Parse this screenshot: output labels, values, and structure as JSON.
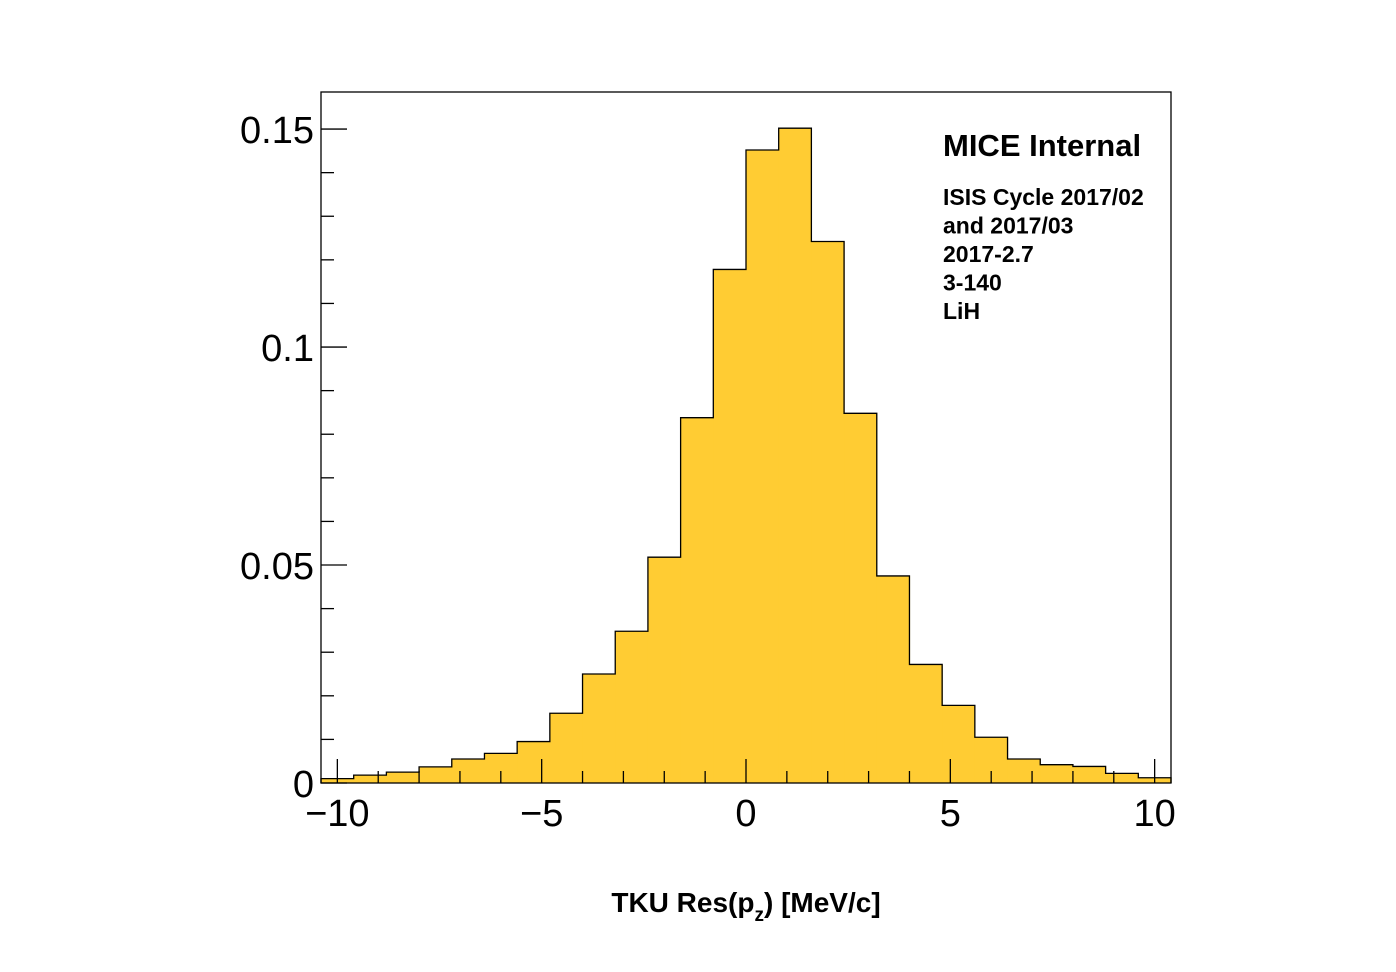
{
  "chart_data": {
    "type": "bar",
    "title": "",
    "xlabel": {
      "main": "TKU Res(p",
      "sub": "z",
      "tail": ") [MeV/c]"
    },
    "ylabel": "",
    "xlim": [
      -10.4,
      10.4
    ],
    "ylim": [
      0,
      0.1585
    ],
    "bin_edges_start": -10.4,
    "bin_width": 0.8,
    "values": [
      0.001,
      0.0018,
      0.0025,
      0.0037,
      0.0055,
      0.0068,
      0.0095,
      0.016,
      0.025,
      0.0348,
      0.0518,
      0.0838,
      0.1178,
      0.1452,
      0.1502,
      0.1242,
      0.0848,
      0.0475,
      0.0272,
      0.0178,
      0.0105,
      0.0055,
      0.0042,
      0.0038,
      0.0022,
      0.0012
    ],
    "fill_color": "#ffcc33",
    "edge_color": "#000000",
    "x_ticks": [
      {
        "value": -10,
        "label": "−10"
      },
      {
        "value": -5,
        "label": "−5"
      },
      {
        "value": 0,
        "label": "0"
      },
      {
        "value": 5,
        "label": "5"
      },
      {
        "value": 10,
        "label": "10"
      }
    ],
    "y_ticks": [
      {
        "value": 0,
        "label": "0"
      },
      {
        "value": 0.05,
        "label": "0.05"
      },
      {
        "value": 0.1,
        "label": "0.1"
      },
      {
        "value": 0.15,
        "label": "0.15"
      }
    ],
    "x_minor_step": 1,
    "y_minor_step": 0.01,
    "grid": false,
    "annotation": {
      "heading": "MICE Internal",
      "lines": [
        "ISIS Cycle 2017/02",
        "and 2017/03",
        "2017-2.7",
        "3-140",
        "LiH"
      ]
    }
  }
}
